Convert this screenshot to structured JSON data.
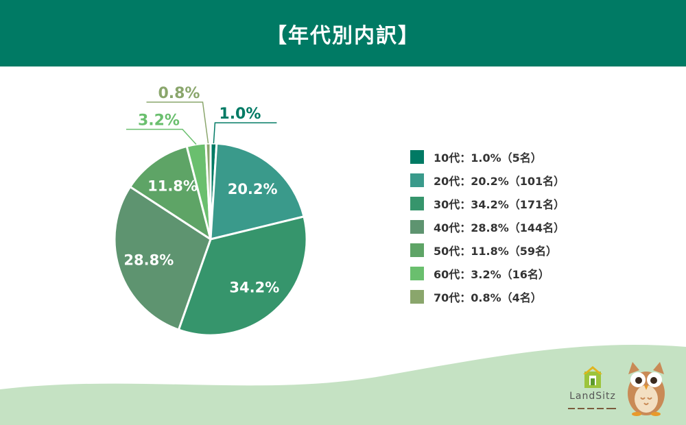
{
  "header": {
    "title": "【年代別内訳】"
  },
  "chart_data": {
    "type": "pie",
    "title": "【年代別内訳】",
    "legend_position": "right",
    "slices": [
      {
        "category": "10代",
        "value": 1.0,
        "label": "1.0%",
        "count_label": "5名",
        "legend": "10代：1.0%（5名）",
        "color": "#007a64"
      },
      {
        "category": "20代",
        "value": 20.2,
        "label": "20.2%",
        "count_label": "101名",
        "legend": "20代：20.2%（101名）",
        "color": "#3a9a8b"
      },
      {
        "category": "30代",
        "value": 34.2,
        "label": "34.2%",
        "count_label": "171名",
        "legend": "30代：34.2%（171名）",
        "color": "#36956c"
      },
      {
        "category": "40代",
        "value": 28.8,
        "label": "28.8%",
        "count_label": "144名",
        "legend": "40代：28.8%（144名）",
        "color": "#5e9470"
      },
      {
        "category": "50代",
        "value": 11.8,
        "label": "11.8%",
        "count_label": "59名",
        "legend": "50代：11.8%（59名）",
        "color": "#5ea466"
      },
      {
        "category": "60代",
        "value": 3.2,
        "label": "3.2%",
        "count_label": "16名",
        "legend": "60代：3.2%（16名）",
        "color": "#6abf6e"
      },
      {
        "category": "70代",
        "value": 0.8,
        "label": "0.8%",
        "count_label": "4名",
        "legend": "70代：0.8%（4名）",
        "color": "#8aa66c"
      }
    ]
  },
  "brand": {
    "name": "LandSitz",
    "mascot_icon": "owl-icon",
    "logo_icon": "house-logo-icon"
  },
  "colors": {
    "header_bg": "#007a64",
    "wave": "#c5e2c3",
    "text": "#333333"
  }
}
